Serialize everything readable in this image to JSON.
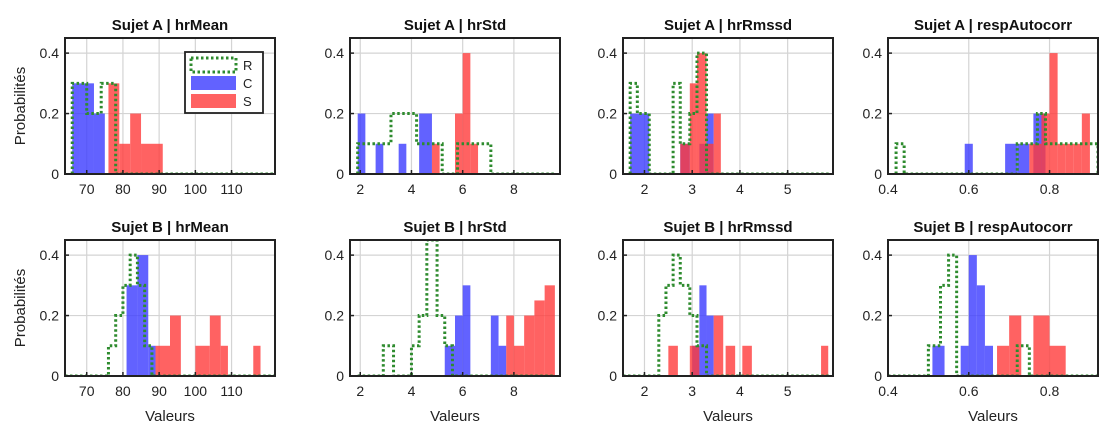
{
  "figure": {
    "ylabel": "Probabilités",
    "xlabel": "Valeurs",
    "legend": [
      "R",
      "C",
      "S"
    ]
  },
  "colors": {
    "R": "#2e8b2e",
    "C": "#3b3bff",
    "S": "#ff3b3b",
    "axes": "#222222",
    "grid": "#d4d4d4"
  },
  "chart_data": [
    {
      "type": "histogram",
      "title": "Sujet A | hrMean",
      "xlim": [
        64,
        122
      ],
      "ylim": [
        0,
        0.45
      ],
      "xticks": [
        70,
        80,
        90,
        100,
        110
      ],
      "yticks": [
        0,
        0.2,
        0.4
      ],
      "legend_position": "top-right",
      "series": [
        {
          "name": "R",
          "style": "dotted-outline",
          "bins": [
            [
              66,
              68,
              0.3
            ],
            [
              68,
              70,
              0.3
            ],
            [
              70,
              72,
              0.2
            ],
            [
              72,
              74,
              0.2
            ],
            [
              74,
              76,
              0.3
            ],
            [
              76,
              78,
              0.3
            ],
            [
              78,
              122,
              0
            ]
          ]
        },
        {
          "name": "C",
          "bins": [
            [
              66,
              68,
              0.3
            ],
            [
              68,
              72,
              0.3
            ],
            [
              72,
              75,
              0.2
            ]
          ]
        },
        {
          "name": "S",
          "bins": [
            [
              76,
              79,
              0.3
            ],
            [
              79,
              82,
              0.1
            ],
            [
              82,
              85,
              0.2
            ],
            [
              85,
              91,
              0.1
            ]
          ]
        }
      ]
    },
    {
      "type": "histogram",
      "title": "Sujet A | hrStd",
      "xlim": [
        1.6,
        9.8
      ],
      "ylim": [
        0,
        0.45
      ],
      "xticks": [
        2,
        4,
        6,
        8
      ],
      "yticks": [
        0,
        0.2,
        0.4
      ],
      "series": [
        {
          "name": "R",
          "style": "dotted-outline",
          "bins": [
            [
              1.9,
              3.2,
              0.1
            ],
            [
              3.2,
              3.4,
              0.2
            ],
            [
              3.4,
              3.9,
              0.2
            ],
            [
              3.9,
              4.2,
              0.2
            ],
            [
              4.2,
              5.2,
              0.1
            ],
            [
              5.2,
              5.8,
              0
            ],
            [
              5.8,
              7.1,
              0.1
            ],
            [
              7.1,
              9.6,
              0
            ]
          ]
        },
        {
          "name": "C",
          "bins": [
            [
              1.9,
              2.2,
              0.2
            ],
            [
              2.6,
              2.9,
              0.1
            ],
            [
              3.5,
              3.8,
              0.1
            ],
            [
              4.3,
              4.8,
              0.2
            ]
          ]
        },
        {
          "name": "S",
          "bins": [
            [
              4.8,
              5.1,
              0.1
            ],
            [
              5.7,
              6.0,
              0.2
            ],
            [
              6.0,
              6.3,
              0.4
            ],
            [
              6.3,
              6.6,
              0.1
            ]
          ]
        }
      ]
    },
    {
      "type": "histogram",
      "title": "Sujet A | hrRmssd",
      "xlim": [
        1.55,
        5.95
      ],
      "ylim": [
        0,
        0.45
      ],
      "xticks": [
        2,
        3,
        4,
        5
      ],
      "yticks": [
        0,
        0.2,
        0.4
      ],
      "series": [
        {
          "name": "R",
          "style": "dotted-outline",
          "bins": [
            [
              1.7,
              1.85,
              0.3
            ],
            [
              1.85,
              2.1,
              0.2
            ],
            [
              2.1,
              2.6,
              0
            ],
            [
              2.6,
              2.75,
              0.3
            ],
            [
              2.75,
              2.95,
              0.1
            ],
            [
              2.95,
              3.1,
              0.2
            ],
            [
              3.1,
              3.3,
              0.4
            ],
            [
              3.3,
              5.9,
              0
            ]
          ]
        },
        {
          "name": "C",
          "bins": [
            [
              1.7,
              2.1,
              0.2
            ],
            [
              2.75,
              2.95,
              0.1
            ],
            [
              3.15,
              3.3,
              0.1
            ],
            [
              3.3,
              3.45,
              0.2
            ]
          ]
        },
        {
          "name": "S",
          "bins": [
            [
              2.75,
              2.95,
              0.1
            ],
            [
              2.95,
              3.1,
              0.3
            ],
            [
              3.1,
              3.3,
              0.4
            ],
            [
              3.3,
              3.45,
              0.1
            ],
            [
              3.45,
              3.6,
              0.2
            ]
          ]
        }
      ]
    },
    {
      "type": "histogram",
      "title": "Sujet A | respAutocorr",
      "xlim": [
        0.4,
        0.92
      ],
      "ylim": [
        0,
        0.45
      ],
      "xticks": [
        0.4,
        0.6,
        0.8
      ],
      "yticks": [
        0,
        0.2,
        0.4
      ],
      "series": [
        {
          "name": "R",
          "style": "dotted-outline",
          "bins": [
            [
              0.42,
              0.44,
              0.1
            ],
            [
              0.44,
              0.72,
              0
            ],
            [
              0.72,
              0.77,
              0.1
            ],
            [
              0.77,
              0.79,
              0.2
            ],
            [
              0.79,
              0.92,
              0.1
            ]
          ]
        },
        {
          "name": "C",
          "bins": [
            [
              0.59,
              0.61,
              0.1
            ],
            [
              0.69,
              0.72,
              0.1
            ],
            [
              0.72,
              0.75,
              0.1
            ],
            [
              0.76,
              0.79,
              0.2
            ]
          ]
        },
        {
          "name": "S",
          "bins": [
            [
              0.75,
              0.78,
              0.1
            ],
            [
              0.78,
              0.8,
              0.2
            ],
            [
              0.8,
              0.82,
              0.4
            ],
            [
              0.82,
              0.84,
              0.1
            ],
            [
              0.84,
              0.86,
              0.1
            ],
            [
              0.86,
              0.88,
              0.1
            ],
            [
              0.88,
              0.9,
              0.2
            ]
          ]
        }
      ]
    },
    {
      "type": "histogram",
      "title": "Sujet B | hrMean",
      "xlim": [
        64,
        122
      ],
      "ylim": [
        0,
        0.45
      ],
      "xticks": [
        70,
        80,
        90,
        100,
        110
      ],
      "yticks": [
        0,
        0.2,
        0.4
      ],
      "series": [
        {
          "name": "R",
          "style": "dotted-outline",
          "bins": [
            [
              64,
              76,
              0
            ],
            [
              76,
              78,
              0.1
            ],
            [
              78,
              80,
              0.2
            ],
            [
              80,
              82,
              0.3
            ],
            [
              82,
              84,
              0.4
            ],
            [
              84,
              86,
              0.3
            ],
            [
              86,
              88,
              0.1
            ],
            [
              88,
              122,
              0
            ]
          ]
        },
        {
          "name": "C",
          "bins": [
            [
              81,
              84,
              0.3
            ],
            [
              84,
              87,
              0.4
            ],
            [
              87,
              89,
              0.1
            ]
          ]
        },
        {
          "name": "S",
          "bins": [
            [
              89,
              93,
              0.1
            ],
            [
              93,
              96,
              0.2
            ],
            [
              100,
              104,
              0.1
            ],
            [
              104,
              107,
              0.2
            ],
            [
              107,
              109,
              0.1
            ],
            [
              116,
              118,
              0.1
            ]
          ]
        }
      ]
    },
    {
      "type": "histogram",
      "title": "Sujet B | hrStd",
      "xlim": [
        1.6,
        9.8
      ],
      "ylim": [
        0,
        0.45
      ],
      "xticks": [
        2,
        4,
        6,
        8
      ],
      "yticks": [
        0,
        0.2,
        0.4
      ],
      "series": [
        {
          "name": "R",
          "style": "dotted-outline",
          "bins": [
            [
              1.9,
              2.9,
              0
            ],
            [
              2.9,
              3.3,
              0.1
            ],
            [
              3.3,
              4.0,
              0
            ],
            [
              4.0,
              4.3,
              0.1
            ],
            [
              4.3,
              4.6,
              0.2
            ],
            [
              4.6,
              5.0,
              0.45
            ],
            [
              5.0,
              5.3,
              0.2
            ],
            [
              5.3,
              5.6,
              0.1
            ],
            [
              5.6,
              9.6,
              0
            ]
          ]
        },
        {
          "name": "C",
          "bins": [
            [
              5.3,
              5.7,
              0.1
            ],
            [
              5.7,
              6.0,
              0.2
            ],
            [
              6.0,
              6.3,
              0.3
            ],
            [
              7.1,
              7.4,
              0.2
            ],
            [
              7.4,
              7.7,
              0.1
            ]
          ]
        },
        {
          "name": "S",
          "bins": [
            [
              7.7,
              8.0,
              0.2
            ],
            [
              8.0,
              8.4,
              0.1
            ],
            [
              8.4,
              8.8,
              0.2
            ],
            [
              8.8,
              9.2,
              0.25
            ],
            [
              9.2,
              9.6,
              0.3
            ]
          ]
        }
      ]
    },
    {
      "type": "histogram",
      "title": "Sujet B | hrRmssd",
      "xlim": [
        1.55,
        5.95
      ],
      "ylim": [
        0,
        0.45
      ],
      "xticks": [
        2,
        3,
        4,
        5
      ],
      "yticks": [
        0,
        0.2,
        0.4
      ],
      "series": [
        {
          "name": "R",
          "style": "dotted-outline",
          "bins": [
            [
              1.55,
              2.3,
              0
            ],
            [
              2.3,
              2.45,
              0.2
            ],
            [
              2.45,
              2.6,
              0.3
            ],
            [
              2.6,
              2.75,
              0.4
            ],
            [
              2.75,
              2.95,
              0.3
            ],
            [
              2.95,
              3.1,
              0.2
            ],
            [
              3.1,
              3.3,
              0.1
            ],
            [
              3.3,
              5.9,
              0
            ]
          ]
        },
        {
          "name": "C",
          "bins": [
            [
              3.0,
              3.15,
              0.1
            ],
            [
              3.15,
              3.3,
              0.3
            ],
            [
              3.3,
              3.45,
              0.2
            ]
          ]
        },
        {
          "name": "S",
          "bins": [
            [
              2.5,
              2.7,
              0.1
            ],
            [
              2.95,
              3.15,
              0.1
            ],
            [
              3.45,
              3.65,
              0.2
            ],
            [
              3.7,
              3.9,
              0.1
            ],
            [
              4.05,
              4.25,
              0.1
            ],
            [
              5.7,
              5.85,
              0.1
            ]
          ]
        }
      ]
    },
    {
      "type": "histogram",
      "title": "Sujet B | respAutocorr",
      "xlim": [
        0.4,
        0.92
      ],
      "ylim": [
        0,
        0.45
      ],
      "xticks": [
        0.4,
        0.6,
        0.8
      ],
      "yticks": [
        0,
        0.2,
        0.4
      ],
      "series": [
        {
          "name": "R",
          "style": "dotted-outline",
          "bins": [
            [
              0.4,
              0.5,
              0
            ],
            [
              0.5,
              0.53,
              0.1
            ],
            [
              0.53,
              0.55,
              0.3
            ],
            [
              0.55,
              0.57,
              0.4
            ],
            [
              0.57,
              0.59,
              0
            ],
            [
              0.59,
              0.66,
              0
            ],
            [
              0.66,
              0.72,
              0
            ],
            [
              0.72,
              0.75,
              0.1
            ],
            [
              0.75,
              0.92,
              0
            ]
          ]
        },
        {
          "name": "C",
          "bins": [
            [
              0.51,
              0.54,
              0.1
            ],
            [
              0.58,
              0.6,
              0.1
            ],
            [
              0.6,
              0.62,
              0.4
            ],
            [
              0.62,
              0.64,
              0.3
            ],
            [
              0.64,
              0.66,
              0.1
            ]
          ]
        },
        {
          "name": "S",
          "bins": [
            [
              0.67,
              0.7,
              0.1
            ],
            [
              0.7,
              0.73,
              0.2
            ],
            [
              0.76,
              0.8,
              0.2
            ],
            [
              0.8,
              0.84,
              0.1
            ]
          ]
        }
      ]
    }
  ]
}
